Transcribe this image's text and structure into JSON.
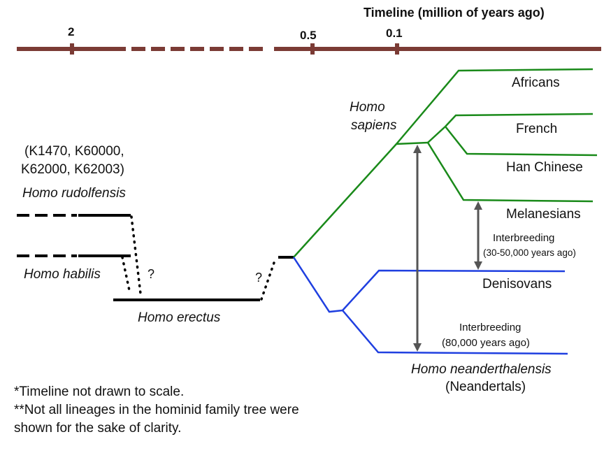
{
  "timeline": {
    "title": "Timeline (million of years ago)",
    "ticks": [
      "2",
      "0.5",
      "0.1"
    ],
    "bar_color": "#7b3b35"
  },
  "labels": {
    "rudolfensis_specimens_line1": "(K1470, K60000,",
    "rudolfensis_specimens_line2": "K62000, K62003)",
    "homo_rudolfensis": "Homo rudolfensis",
    "homo_habilis": "Homo habilis",
    "homo_erectus": "Homo erectus",
    "homo_sapiens_line1": "Homo",
    "homo_sapiens_line2": "sapiens",
    "unknown_1": "?",
    "unknown_2": "?",
    "africans": "Africans",
    "french": "French",
    "han_chinese": "Han Chinese",
    "melanesians": "Melanesians",
    "denisovans": "Denisovans",
    "homo_neanderthalensis": "Homo neanderthalensis",
    "neandertals": "(Neandertals)"
  },
  "interbreeding": [
    {
      "line1": "Interbreeding",
      "line2": "(30-50,000 years ago)"
    },
    {
      "line1": "Interbreeding",
      "line2": "(80,000 years ago)"
    }
  ],
  "notes": {
    "note1": "*Timeline not drawn to scale.",
    "note2": "**Not all lineages in the hominid family tree were",
    "note3": "shown for the sake of clarity."
  },
  "colors": {
    "sapiens_lineage": "#1a8a1a",
    "archaic_lineage": "#1f3fe0",
    "early_homo": "#000000",
    "interbreeding_arrow": "#555555"
  }
}
